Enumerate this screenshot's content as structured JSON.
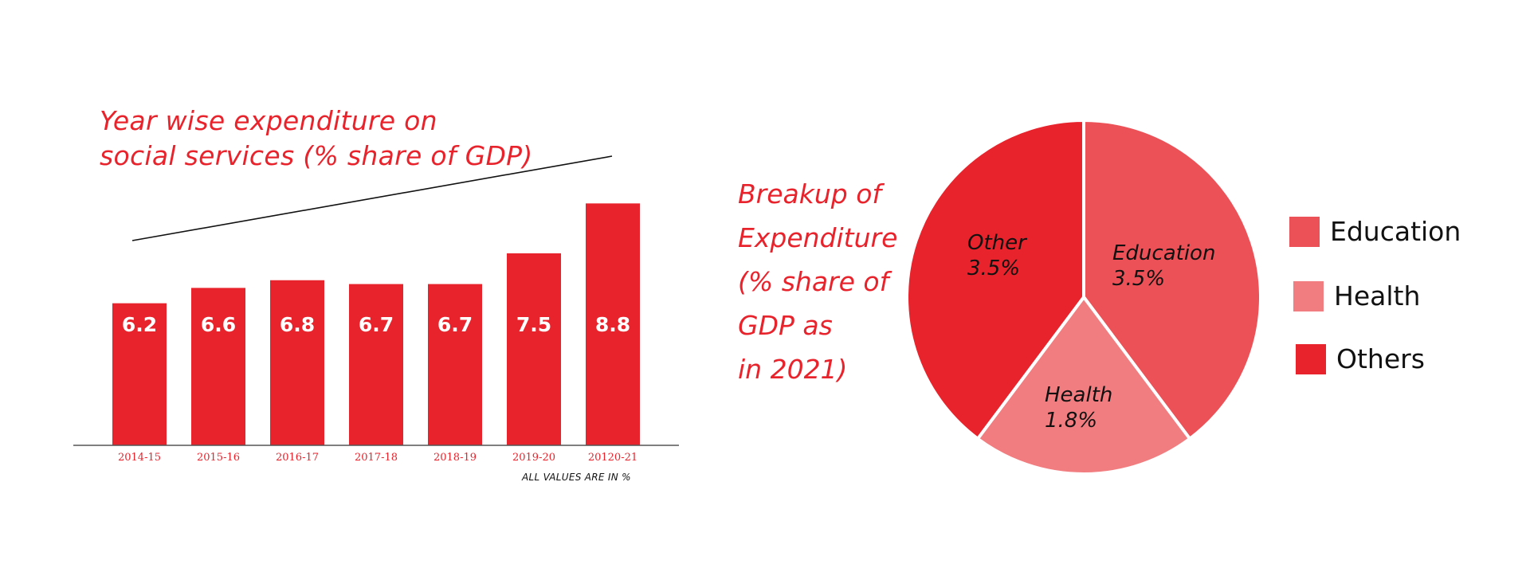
{
  "bar_chart": {
    "title_lines": [
      "Year wise expenditure on",
      "social services (% share of GDP)"
    ],
    "note": "ALL VALUES ARE IN %"
  },
  "pie_chart": {
    "title_lines": [
      "Breakup of",
      "Expenditure",
      "(% share of",
      "GDP as",
      "in  2021)"
    ]
  },
  "legend": [
    {
      "label": "Education",
      "color": "#ec5157"
    },
    {
      "label": "Health",
      "color": "#f27d80"
    },
    {
      "label": "Others",
      "color": "#e8232c"
    }
  ],
  "colors": {
    "accent": "#e8232c",
    "education": "#ec5157",
    "health": "#f27d80",
    "others": "#e8232c"
  },
  "chart_data": [
    {
      "type": "bar",
      "title": "Year wise expenditure on social services (% share of GDP)",
      "categories": [
        "2014-15",
        "2015-16",
        "2016-17",
        "2017-18",
        "2018-19",
        "2019-20",
        "20120-21"
      ],
      "values": [
        6.2,
        6.6,
        6.8,
        6.7,
        6.7,
        7.5,
        8.8
      ],
      "data_labels": [
        "6.2",
        "6.6",
        "6.8",
        "6.7",
        "6.7",
        "7.5",
        "8.8"
      ],
      "trendline": true,
      "note": "ALL VALUES ARE IN %",
      "grid": false
    },
    {
      "type": "pie",
      "title": "Breakup of Expenditure (% share of GDP as in  2021)",
      "slices": [
        {
          "label": "Education",
          "value": 3.5,
          "value_label": "3.5%",
          "color": "#ec5157"
        },
        {
          "label": "Health",
          "value": 1.8,
          "value_label": "1.8%",
          "color": "#f27d80"
        },
        {
          "label": "Other",
          "value": 3.5,
          "value_label": "3.5%",
          "color": "#e8232c"
        }
      ],
      "legend": [
        "Education",
        "Health",
        "Others"
      ],
      "legend_position": "right"
    }
  ]
}
